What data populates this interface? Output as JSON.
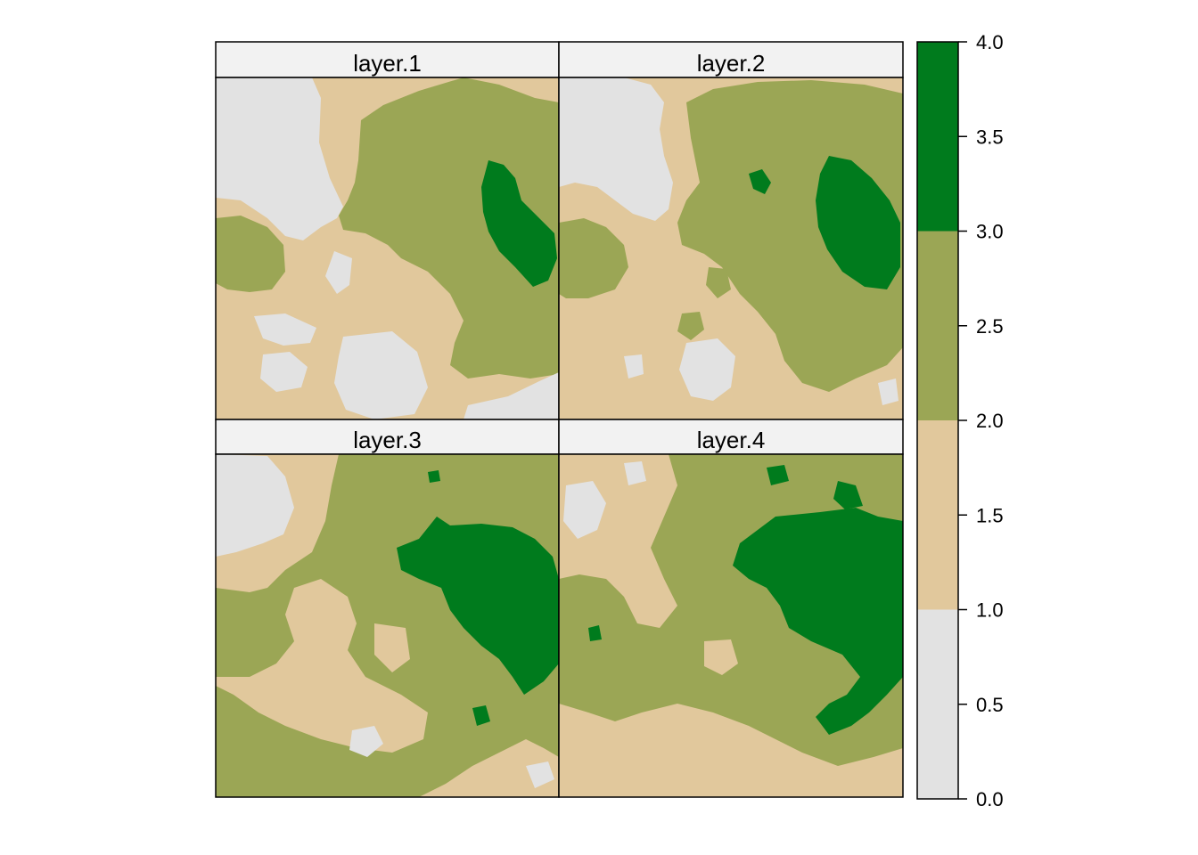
{
  "chart_data": {
    "type": "heatmap",
    "layout": {
      "rows": 2,
      "cols": 2
    },
    "panels": [
      {
        "title": "layer.1"
      },
      {
        "title": "layer.2"
      },
      {
        "title": "layer.3"
      },
      {
        "title": "layer.4"
      }
    ],
    "legend": {
      "placement": "right",
      "range": [
        0.0,
        4.0
      ],
      "tick_labels": [
        "0.0",
        "0.5",
        "1.0",
        "1.5",
        "2.0",
        "2.5",
        "3.0",
        "3.5",
        "4.0"
      ],
      "classes": [
        {
          "from": 0,
          "to": 1,
          "color": "#e2e2e2"
        },
        {
          "from": 1,
          "to": 2,
          "color": "#e1c89c"
        },
        {
          "from": 2,
          "to": 3,
          "color": "#9ba655"
        },
        {
          "from": 3,
          "to": 4,
          "color": "#007b1d"
        }
      ]
    }
  }
}
